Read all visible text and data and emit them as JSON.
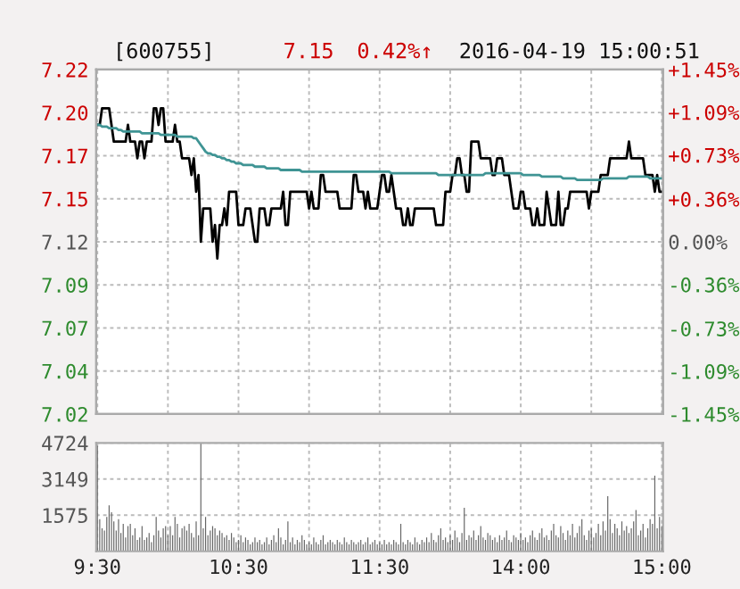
{
  "chart_data": [
    {
      "type": "line",
      "title": "[600755]",
      "annotations": [
        "7.15",
        "0.42%↑",
        "2016-04-19 15:00:51"
      ],
      "categories": [
        null,
        null,
        null,
        null,
        null,
        null,
        null,
        null,
        null,
        null,
        null,
        null,
        null,
        null,
        null,
        null,
        null,
        null,
        null,
        null,
        null,
        null,
        null,
        null,
        null,
        null,
        null,
        null,
        null,
        null,
        null,
        null,
        null,
        null,
        null,
        null,
        null,
        null,
        null,
        null,
        null,
        null,
        null,
        null,
        null,
        null,
        null,
        null,
        null,
        null,
        null,
        null,
        null,
        null,
        null,
        null,
        null,
        null,
        null,
        null,
        null,
        null,
        null,
        null,
        null,
        null,
        null,
        null,
        null,
        null,
        null,
        null,
        null,
        null,
        null,
        null,
        null,
        null,
        null,
        null,
        null,
        null,
        null,
        null,
        null,
        null,
        null,
        null,
        null,
        null,
        null,
        null,
        null,
        null,
        null,
        null,
        null,
        null,
        null,
        null,
        null,
        null,
        null,
        null,
        null,
        null,
        null,
        null,
        null,
        null,
        null,
        null,
        null,
        null,
        null,
        null,
        null,
        null,
        null,
        null,
        null,
        null,
        null,
        null,
        null,
        null,
        null,
        null,
        null,
        null,
        null,
        null,
        null,
        null,
        null,
        null,
        null,
        null,
        null,
        null,
        null,
        null,
        null,
        null,
        null,
        null,
        null,
        null,
        null,
        null,
        null,
        null,
        null,
        null,
        null,
        null,
        null,
        null,
        null,
        null,
        null,
        null,
        null,
        null,
        null,
        null,
        null,
        null,
        null,
        null,
        null,
        null,
        null,
        null,
        null,
        null,
        null,
        null,
        null,
        null,
        null,
        null,
        null,
        null,
        null,
        null,
        null,
        null,
        null,
        null,
        null,
        null,
        null,
        null,
        null,
        null,
        null,
        null,
        null,
        null,
        null,
        null,
        null,
        null,
        null,
        null,
        null,
        null,
        null,
        null,
        null,
        null,
        null,
        null,
        null,
        null,
        null,
        null,
        null,
        null,
        null,
        null,
        null,
        null,
        null,
        null,
        null,
        null,
        null,
        null,
        null,
        null,
        null,
        null,
        null,
        null,
        null,
        null,
        null,
        null,
        null
      ],
      "series": [
        {
          "color": "#000000",
          "values": [
            7.19,
            7.19,
            7.2,
            7.2,
            7.2,
            7.2,
            7.19,
            7.18,
            7.18,
            7.18,
            7.18,
            7.18,
            7.18,
            7.19,
            7.18,
            7.18,
            7.18,
            7.17,
            7.18,
            7.18,
            7.17,
            7.18,
            7.18,
            7.18,
            7.2,
            7.2,
            7.19,
            7.2,
            7.2,
            7.18,
            7.18,
            7.18,
            7.18,
            7.19,
            7.18,
            7.18,
            7.17,
            7.17,
            7.17,
            7.17,
            7.16,
            7.17,
            7.15,
            7.16,
            7.12,
            7.14,
            7.14,
            7.14,
            7.14,
            7.12,
            7.13,
            7.11,
            7.13,
            7.13,
            7.14,
            7.13,
            7.15,
            7.15,
            7.15,
            7.15,
            7.13,
            7.13,
            7.13,
            7.14,
            7.14,
            7.14,
            7.13,
            7.12,
            7.12,
            7.14,
            7.14,
            7.14,
            7.13,
            7.13,
            7.14,
            7.14,
            7.14,
            7.14,
            7.14,
            7.15,
            7.13,
            7.13,
            7.15,
            7.15,
            7.15,
            7.15,
            7.15,
            7.15,
            7.15,
            7.15,
            7.14,
            7.15,
            7.14,
            7.14,
            7.14,
            7.16,
            7.16,
            7.15,
            7.15,
            7.15,
            7.15,
            7.15,
            7.15,
            7.14,
            7.14,
            7.14,
            7.14,
            7.14,
            7.14,
            7.16,
            7.16,
            7.15,
            7.15,
            7.15,
            7.14,
            7.15,
            7.14,
            7.14,
            7.14,
            7.14,
            7.15,
            7.16,
            7.16,
            7.15,
            7.15,
            7.16,
            7.15,
            7.14,
            7.14,
            7.14,
            7.13,
            7.13,
            7.14,
            7.13,
            7.13,
            7.14,
            7.14,
            7.14,
            7.14,
            7.14,
            7.14,
            7.14,
            7.14,
            7.14,
            7.13,
            7.13,
            7.13,
            7.13,
            7.15,
            7.15,
            7.15,
            7.16,
            7.16,
            7.17,
            7.17,
            7.16,
            7.16,
            7.15,
            7.15,
            7.18,
            7.18,
            7.18,
            7.18,
            7.17,
            7.17,
            7.17,
            7.17,
            7.17,
            7.16,
            7.16,
            7.17,
            7.17,
            7.17,
            7.16,
            7.16,
            7.16,
            7.15,
            7.14,
            7.14,
            7.14,
            7.15,
            7.15,
            7.14,
            7.14,
            7.14,
            7.13,
            7.13,
            7.14,
            7.13,
            7.13,
            7.13,
            7.15,
            7.14,
            7.13,
            7.13,
            7.13,
            7.15,
            7.13,
            7.13,
            7.14,
            7.14,
            7.15,
            7.15,
            7.15,
            7.15,
            7.15,
            7.15,
            7.15,
            7.15,
            7.14,
            7.15,
            7.15,
            7.15,
            7.15,
            7.16,
            7.16,
            7.16,
            7.16,
            7.17,
            7.17,
            7.17,
            7.17,
            7.17,
            7.17,
            7.17,
            7.17,
            7.18,
            7.17,
            7.17,
            7.17,
            7.17,
            7.17,
            7.17,
            7.16,
            7.16,
            7.16,
            7.16,
            7.15,
            7.16,
            7.15,
            7.15
          ]
        },
        {
          "color": "#3f9494",
          "values": [
            7.19,
            7.19,
            7.189,
            7.189,
            7.189,
            7.188,
            7.188,
            7.188,
            7.188,
            7.187,
            7.187,
            7.186,
            7.186,
            7.186,
            7.186,
            7.186,
            7.186,
            7.186,
            7.186,
            7.185,
            7.185,
            7.185,
            7.185,
            7.185,
            7.185,
            7.185,
            7.185,
            7.184,
            7.184,
            7.184,
            7.184,
            7.184,
            7.184,
            7.184,
            7.183,
            7.183,
            7.183,
            7.183,
            7.183,
            7.183,
            7.183,
            7.182,
            7.182,
            7.18,
            7.178,
            7.176,
            7.174,
            7.173,
            7.173,
            7.172,
            7.172,
            7.171,
            7.171,
            7.17,
            7.17,
            7.169,
            7.169,
            7.168,
            7.168,
            7.167,
            7.167,
            7.167,
            7.166,
            7.166,
            7.166,
            7.166,
            7.166,
            7.165,
            7.165,
            7.165,
            7.165,
            7.165,
            7.164,
            7.164,
            7.164,
            7.164,
            7.164,
            7.164,
            7.163,
            7.163,
            7.163,
            7.163,
            7.163,
            7.163,
            7.163,
            7.163,
            7.163,
            7.162,
            7.162,
            7.162,
            7.162,
            7.162,
            7.162,
            7.162,
            7.162,
            7.162,
            7.162,
            7.162,
            7.162,
            7.162,
            7.162,
            7.162,
            7.162,
            7.162,
            7.162,
            7.162,
            7.162,
            7.162,
            7.162,
            7.162,
            7.162,
            7.162,
            7.162,
            7.162,
            7.162,
            7.162,
            7.162,
            7.162,
            7.162,
            7.162,
            7.162,
            7.162,
            7.162,
            7.162,
            7.162,
            7.161,
            7.161,
            7.161,
            7.161,
            7.161,
            7.161,
            7.161,
            7.161,
            7.161,
            7.161,
            7.161,
            7.161,
            7.161,
            7.161,
            7.161,
            7.161,
            7.161,
            7.161,
            7.161,
            7.161,
            7.16,
            7.16,
            7.16,
            7.16,
            7.16,
            7.16,
            7.16,
            7.16,
            7.16,
            7.16,
            7.16,
            7.16,
            7.16,
            7.16,
            7.16,
            7.16,
            7.16,
            7.16,
            7.16,
            7.16,
            7.161,
            7.161,
            7.161,
            7.161,
            7.161,
            7.161,
            7.161,
            7.161,
            7.161,
            7.161,
            7.161,
            7.161,
            7.161,
            7.161,
            7.161,
            7.161,
            7.16,
            7.16,
            7.16,
            7.16,
            7.16,
            7.16,
            7.16,
            7.16,
            7.159,
            7.159,
            7.159,
            7.159,
            7.159,
            7.159,
            7.159,
            7.159,
            7.159,
            7.158,
            7.158,
            7.158,
            7.158,
            7.158,
            7.158,
            7.157,
            7.157,
            7.157,
            7.157,
            7.157,
            7.157,
            7.157,
            7.157,
            7.157,
            7.157,
            7.157,
            7.158,
            7.158,
            7.158,
            7.158,
            7.158,
            7.158,
            7.158,
            7.158,
            7.158,
            7.158,
            7.158,
            7.159,
            7.159,
            7.159,
            7.159,
            7.159,
            7.159,
            7.159,
            7.159,
            7.159,
            7.158,
            7.158,
            7.158,
            7.158,
            7.158,
            7.158
          ]
        }
      ],
      "ylim": [
        7.0168,
        7.2232
      ],
      "yticks": [
        {
          "value": 7.0168,
          "label": "7.02"
        },
        {
          "value": 7.0426,
          "label": "7.04"
        },
        {
          "value": 7.0684,
          "label": "7.07"
        },
        {
          "value": 7.0942,
          "label": "7.09"
        },
        {
          "value": 7.12,
          "label": "7.12"
        },
        {
          "value": 7.1458,
          "label": "7.15"
        },
        {
          "value": 7.1716,
          "label": "7.17"
        },
        {
          "value": 7.1974,
          "label": "7.20"
        },
        {
          "value": 7.2232,
          "label": "7.22"
        }
      ],
      "y2lim": [
        -1.45,
        1.45
      ],
      "y2ticks": [
        {
          "value": -1.45,
          "label": "-1.45%"
        },
        {
          "value": -1.09,
          "label": "-1.09%"
        },
        {
          "value": -0.73,
          "label": "-0.73%"
        },
        {
          "value": -0.36,
          "label": "-0.36%"
        },
        {
          "value": 0,
          "label": "0.00%"
        },
        {
          "value": 0.36,
          "label": "+0.36%"
        },
        {
          "value": 0.73,
          "label": "+0.73%"
        },
        {
          "value": 1.09,
          "label": "+1.09%"
        },
        {
          "value": 1.45,
          "label": "+1.45%"
        }
      ],
      "grid": true,
      "tick_labels": "y"
    },
    {
      "type": "bar",
      "categories": [
        "9:30",
        null,
        null,
        null,
        null,
        null,
        null,
        null,
        null,
        null,
        null,
        null,
        null,
        null,
        null,
        null,
        null,
        null,
        null,
        null,
        null,
        null,
        null,
        null,
        null,
        null,
        null,
        null,
        null,
        null,
        null,
        null,
        null,
        null,
        null,
        null,
        null,
        null,
        null,
        null,
        null,
        null,
        null,
        null,
        null,
        null,
        null,
        null,
        null,
        null,
        null,
        null,
        null,
        null,
        null,
        null,
        null,
        null,
        null,
        null,
        "10:30",
        null,
        null,
        null,
        null,
        null,
        null,
        null,
        null,
        null,
        null,
        null,
        null,
        null,
        null,
        null,
        null,
        null,
        null,
        null,
        null,
        null,
        null,
        null,
        null,
        null,
        null,
        null,
        null,
        null,
        null,
        null,
        null,
        null,
        null,
        null,
        null,
        null,
        null,
        null,
        null,
        null,
        null,
        null,
        null,
        null,
        null,
        null,
        null,
        null,
        null,
        null,
        null,
        null,
        null,
        null,
        null,
        null,
        null,
        null,
        "11:30",
        null,
        null,
        null,
        null,
        null,
        null,
        null,
        null,
        null,
        null,
        null,
        null,
        null,
        null,
        null,
        null,
        null,
        null,
        null,
        null,
        null,
        null,
        null,
        null,
        null,
        null,
        null,
        null,
        null,
        null,
        null,
        null,
        null,
        null,
        null,
        null,
        null,
        null,
        null,
        null,
        null,
        null,
        null,
        null,
        null,
        null,
        null,
        null,
        null,
        null,
        null,
        null,
        null,
        null,
        null,
        null,
        null,
        null,
        null,
        "14:00",
        null,
        null,
        null,
        null,
        null,
        null,
        null,
        null,
        null,
        null,
        null,
        null,
        null,
        null,
        null,
        null,
        null,
        null,
        null,
        null,
        null,
        null,
        null,
        null,
        null,
        null,
        null,
        null,
        null,
        null,
        null,
        null,
        null,
        null,
        null,
        null,
        null,
        null,
        null,
        null,
        null,
        null,
        null,
        null,
        null,
        null,
        null,
        null,
        null,
        null,
        null,
        null,
        null,
        null,
        null,
        null,
        null,
        null,
        null,
        "15:00"
      ],
      "values": [
        4600,
        1400,
        1000,
        900,
        1500,
        2000,
        1700,
        1300,
        900,
        1400,
        800,
        1200,
        600,
        1100,
        1200,
        700,
        1000,
        500,
        600,
        1100,
        500,
        600,
        800,
        400,
        700,
        1500,
        900,
        600,
        1000,
        1100,
        700,
        1100,
        700,
        1500,
        1200,
        600,
        1000,
        1100,
        900,
        1200,
        800,
        600,
        1300,
        700,
        4700,
        1000,
        1500,
        700,
        900,
        1100,
        1000,
        700,
        900,
        800,
        600,
        700,
        500,
        800,
        600,
        400,
        500,
        700,
        400,
        600,
        500,
        300,
        400,
        600,
        400,
        500,
        300,
        400,
        600,
        300,
        500,
        700,
        400,
        1000,
        600,
        300,
        500,
        1300,
        400,
        600,
        300,
        500,
        400,
        700,
        500,
        300,
        400,
        300,
        600,
        400,
        300,
        500,
        700,
        300,
        400,
        500,
        400,
        300,
        500,
        400,
        300,
        600,
        400,
        300,
        500,
        400,
        300,
        400,
        500,
        300,
        400,
        600,
        300,
        400,
        500,
        300,
        400,
        300,
        500,
        300,
        400,
        300,
        500,
        400,
        300,
        1200,
        400,
        300,
        500,
        400,
        300,
        600,
        400,
        300,
        500,
        400,
        600,
        400,
        800,
        500,
        400,
        700,
        1000,
        500,
        600,
        400,
        700,
        500,
        900,
        600,
        400,
        800,
        1900,
        500,
        700,
        600,
        900,
        500,
        700,
        1100,
        600,
        500,
        800,
        700,
        500,
        600,
        400,
        700,
        500,
        600,
        900,
        500,
        400,
        700,
        600,
        500,
        800,
        500,
        600,
        400,
        700,
        900,
        600,
        500,
        800,
        1000,
        600,
        700,
        500,
        900,
        1200,
        700,
        600,
        1100,
        800,
        500,
        900,
        700,
        1200,
        600,
        800,
        1100,
        1400,
        700,
        500,
        900,
        1000,
        600,
        800,
        1200,
        700,
        1300,
        900,
        2400,
        1400,
        800,
        1200,
        1000,
        700,
        1300,
        900,
        1100,
        800,
        1000,
        1300,
        1800,
        700,
        900,
        1200,
        600,
        1000,
        1400,
        1200,
        3300,
        1000,
        1500,
        1100
      ],
      "color": "#666666",
      "ylim": [
        0,
        4724
      ],
      "yticks": [
        1575,
        3149,
        4724
      ],
      "grid": true
    }
  ]
}
